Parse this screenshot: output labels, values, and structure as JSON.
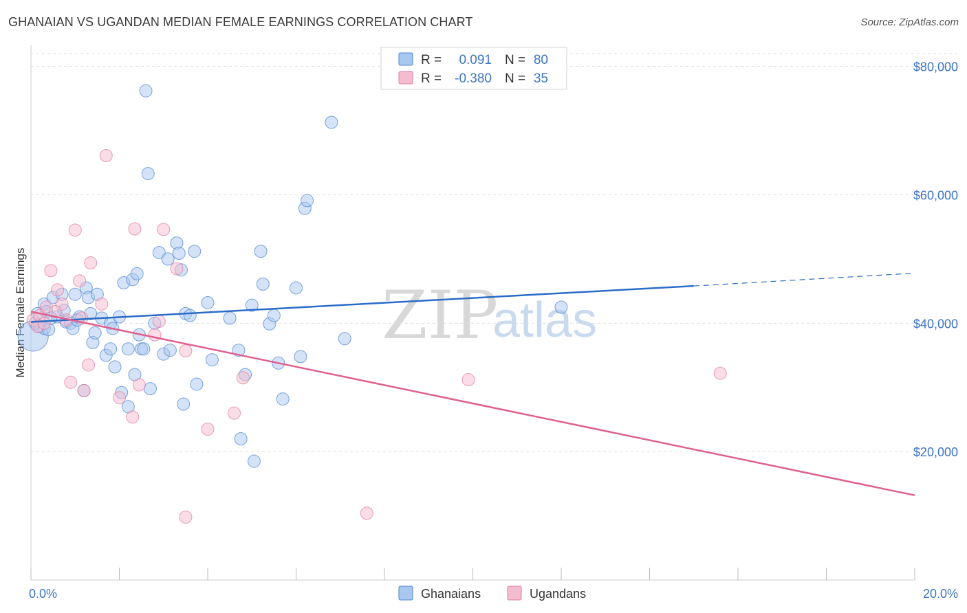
{
  "title": "GHANAIAN VS UGANDAN MEDIAN FEMALE EARNINGS CORRELATION CHART",
  "source": "Source: ZipAtlas.com",
  "watermark": {
    "zip": "ZIP",
    "atlas": "atlas"
  },
  "colors": {
    "ghanaians_fill": "#a9c8f0",
    "ghanaians_stroke": "#4f86d0",
    "ghanaians_line": "#2a6cc8",
    "ugandans_fill": "#f5bcd0",
    "ugandans_stroke": "#e07ea0",
    "ugandans_line": "#e0608e",
    "grid": "#dddddd",
    "axis_text": "#3d74c6"
  },
  "legend": {
    "rows": [
      {
        "r_label": "R =",
        "r_value": "0.091",
        "n_label": "N =",
        "n_value": "80"
      },
      {
        "r_label": "R =",
        "r_value": "-0.380",
        "n_label": "N =",
        "n_value": "35"
      }
    ]
  },
  "chart_data": {
    "type": "scatter",
    "title": "GHANAIAN VS UGANDAN MEDIAN FEMALE EARNINGS CORRELATION CHART",
    "xlabel": "",
    "ylabel": "Median Female Earnings",
    "xlim": [
      0,
      20
    ],
    "ylim": [
      0,
      82000
    ],
    "x_tick_labels": [
      "0.0%",
      "20.0%"
    ],
    "y_ticks": [
      20000,
      40000,
      60000,
      80000
    ],
    "y_tick_labels": [
      "$20,000",
      "$40,000",
      "$60,000",
      "$80,000"
    ],
    "legend_position": "top-center",
    "series": [
      {
        "name": "Ghanaians",
        "r": 0.091,
        "n": 80,
        "trend": {
          "x_start": 0,
          "y_start": 40200,
          "x_solid_end": 15,
          "y_solid_end": 45800,
          "x_end": 20,
          "y_end": 47800
        },
        "points": [
          [
            0.05,
            38000
          ],
          [
            0.1,
            40000
          ],
          [
            0.2,
            39500
          ],
          [
            0.3,
            39200
          ],
          [
            0.3,
            43000
          ],
          [
            0.35,
            41800
          ],
          [
            0.4,
            39000
          ],
          [
            0.5,
            44000
          ],
          [
            0.6,
            41000
          ],
          [
            0.7,
            44500
          ],
          [
            0.75,
            42000
          ],
          [
            0.8,
            40200
          ],
          [
            0.9,
            40000
          ],
          [
            0.95,
            39200
          ],
          [
            1.0,
            44500
          ],
          [
            1.1,
            41000
          ],
          [
            1.2,
            29500
          ],
          [
            1.25,
            45500
          ],
          [
            1.3,
            44000
          ],
          [
            1.35,
            41500
          ],
          [
            1.4,
            37000
          ],
          [
            1.45,
            38500
          ],
          [
            1.5,
            44500
          ],
          [
            1.6,
            40800
          ],
          [
            1.7,
            35000
          ],
          [
            1.8,
            40000
          ],
          [
            1.8,
            36000
          ],
          [
            1.85,
            39200
          ],
          [
            1.9,
            33200
          ],
          [
            2.0,
            41000
          ],
          [
            2.05,
            29200
          ],
          [
            2.1,
            46300
          ],
          [
            2.2,
            36000
          ],
          [
            2.2,
            27000
          ],
          [
            2.3,
            46800
          ],
          [
            2.35,
            32000
          ],
          [
            2.4,
            47700
          ],
          [
            2.45,
            38200
          ],
          [
            2.5,
            36000
          ],
          [
            2.55,
            36000
          ],
          [
            2.6,
            76200
          ],
          [
            2.65,
            63300
          ],
          [
            2.7,
            29800
          ],
          [
            2.8,
            40000
          ],
          [
            2.9,
            51000
          ],
          [
            3.0,
            35200
          ],
          [
            3.1,
            50000
          ],
          [
            3.15,
            35800
          ],
          [
            3.3,
            52500
          ],
          [
            3.35,
            50900
          ],
          [
            3.4,
            48300
          ],
          [
            3.45,
            27400
          ],
          [
            3.5,
            41500
          ],
          [
            3.6,
            41200
          ],
          [
            3.7,
            51200
          ],
          [
            3.75,
            30500
          ],
          [
            4.0,
            43200
          ],
          [
            4.1,
            34300
          ],
          [
            4.5,
            40800
          ],
          [
            4.7,
            35800
          ],
          [
            4.75,
            22000
          ],
          [
            4.85,
            32000
          ],
          [
            5.0,
            42800
          ],
          [
            5.05,
            18500
          ],
          [
            5.2,
            51200
          ],
          [
            5.25,
            46100
          ],
          [
            5.4,
            39900
          ],
          [
            5.5,
            41200
          ],
          [
            5.6,
            33800
          ],
          [
            5.7,
            28200
          ],
          [
            6.0,
            45500
          ],
          [
            6.1,
            34800
          ],
          [
            6.2,
            57900
          ],
          [
            6.25,
            59100
          ],
          [
            6.8,
            71300
          ],
          [
            7.1,
            37600
          ],
          [
            12.0,
            42500
          ],
          [
            0.15,
            41500
          ],
          [
            0.45,
            40800
          ],
          [
            1.05,
            40500
          ]
        ]
      },
      {
        "name": "Ugandans",
        "r": -0.38,
        "n": 35,
        "trend": {
          "x_start": 0,
          "y_start": 41800,
          "x_end": 20,
          "y_end": 13200
        },
        "points": [
          [
            0.05,
            40500
          ],
          [
            0.15,
            39500
          ],
          [
            0.2,
            41200
          ],
          [
            0.3,
            40000
          ],
          [
            0.45,
            48200
          ],
          [
            0.6,
            45200
          ],
          [
            0.7,
            43000
          ],
          [
            0.8,
            40500
          ],
          [
            0.9,
            30800
          ],
          [
            1.0,
            54500
          ],
          [
            1.1,
            46600
          ],
          [
            1.2,
            29500
          ],
          [
            1.3,
            33500
          ],
          [
            1.35,
            49400
          ],
          [
            1.6,
            43000
          ],
          [
            1.7,
            66100
          ],
          [
            2.0,
            28400
          ],
          [
            2.3,
            25400
          ],
          [
            2.35,
            54700
          ],
          [
            2.45,
            30400
          ],
          [
            2.8,
            38200
          ],
          [
            2.9,
            40300
          ],
          [
            3.0,
            54600
          ],
          [
            3.3,
            48500
          ],
          [
            3.5,
            35700
          ],
          [
            3.5,
            9800
          ],
          [
            4.0,
            23500
          ],
          [
            4.6,
            26000
          ],
          [
            4.8,
            31500
          ],
          [
            7.6,
            10400
          ],
          [
            9.9,
            31200
          ],
          [
            15.6,
            32200
          ],
          [
            0.35,
            42500
          ],
          [
            0.55,
            41800
          ],
          [
            1.15,
            40800
          ]
        ]
      }
    ]
  },
  "bottom_legend": [
    {
      "label": "Ghanaians"
    },
    {
      "label": "Ugandans"
    }
  ]
}
